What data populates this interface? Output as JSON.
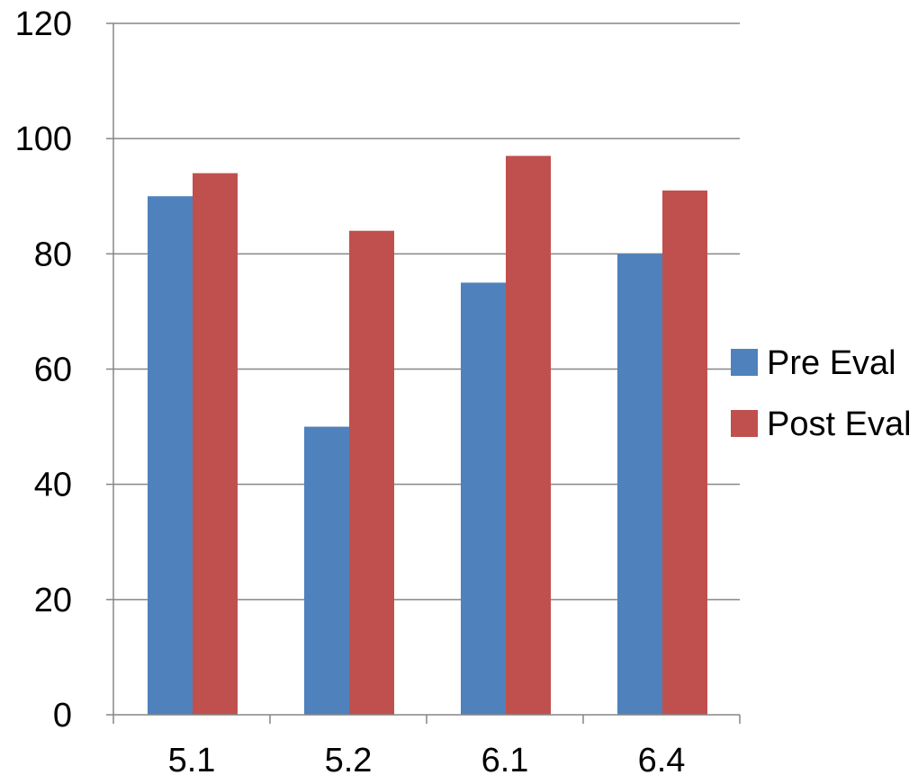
{
  "chart_data": {
    "type": "bar",
    "categories": [
      "5.1",
      "5.2",
      "6.1",
      "6.4"
    ],
    "series": [
      {
        "name": "Pre Eval",
        "values": [
          90,
          50,
          75,
          80
        ],
        "color": "#4F81BD"
      },
      {
        "name": "Post Eval",
        "values": [
          94,
          84,
          97,
          91
        ],
        "color": "#C0504D"
      }
    ],
    "ylim": [
      0,
      120
    ],
    "yticks": [
      0,
      20,
      40,
      60,
      80,
      100,
      120
    ],
    "grid": true,
    "legend_position": "right",
    "title": "",
    "xlabel": "",
    "ylabel": ""
  }
}
